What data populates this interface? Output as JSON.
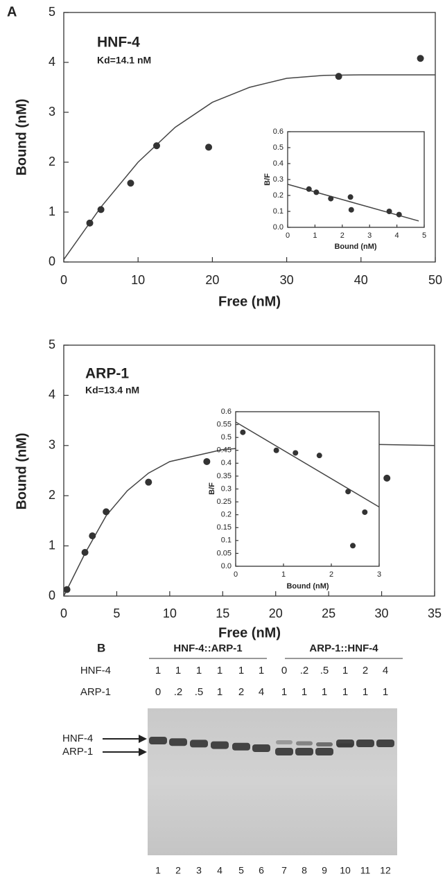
{
  "panel_a": "A",
  "chart_data": [
    {
      "type": "scatter",
      "title": "HNF-4",
      "annotation": "Kd=14.1 nM",
      "x_label": "Free (nM)",
      "y_label": "Bound (nM)",
      "x": [
        3.5,
        5,
        9,
        12.5,
        19.5,
        37,
        48
      ],
      "values": [
        0.78,
        1.05,
        1.58,
        2.33,
        2.3,
        3.72,
        4.08
      ],
      "fit": {
        "x": [
          0,
          5,
          10,
          15,
          20,
          25,
          30,
          35,
          40,
          50
        ],
        "y": [
          0.05,
          1.1,
          2.0,
          2.7,
          3.2,
          3.5,
          3.68,
          3.74,
          3.75,
          3.75
        ]
      },
      "xlim": [
        0,
        50
      ],
      "xticks": [
        0,
        10,
        20,
        30,
        40,
        50
      ],
      "ylim": [
        0,
        5
      ],
      "yticks": [
        0,
        1,
        2,
        3,
        4,
        5
      ]
    },
    {
      "type": "scatter",
      "x_label": "Bound (nM)",
      "y_label": "B/F",
      "x": [
        0.78,
        1.05,
        1.58,
        2.33,
        2.3,
        3.72,
        4.08
      ],
      "values": [
        0.24,
        0.22,
        0.18,
        0.11,
        0.19,
        0.1,
        0.08
      ],
      "fit": {
        "x": [
          0,
          4.8
        ],
        "y": [
          0.27,
          0.04
        ]
      },
      "xlim": [
        0,
        5
      ],
      "xticks": [
        0,
        1,
        2,
        3,
        4,
        5
      ],
      "ylim": [
        0,
        0.6
      ],
      "yticks": [
        {
          "value": 0,
          "label": "0.0"
        },
        0.1,
        0.2,
        0.3,
        0.4,
        0.5,
        0.6
      ]
    },
    {
      "type": "scatter",
      "title": "ARP-1",
      "annotation": "Kd=13.4 nM",
      "x_label": "Free (nM)",
      "y_label": "Bound (nM)",
      "x": [
        0.3,
        2,
        2.7,
        4,
        8,
        13.5,
        30.5
      ],
      "values": [
        0.13,
        0.87,
        1.2,
        1.68,
        2.27,
        2.68,
        2.35
      ],
      "fit": {
        "x": [
          0,
          2,
          4,
          6,
          8,
          10,
          15,
          20,
          25,
          30,
          35
        ],
        "y": [
          0,
          0.85,
          1.6,
          2.1,
          2.45,
          2.68,
          2.92,
          3.0,
          3.02,
          3.02,
          3.0
        ]
      },
      "xlim": [
        0,
        35
      ],
      "xticks": [
        0,
        5,
        10,
        15,
        20,
        25,
        30,
        35
      ],
      "ylim": [
        0,
        5
      ],
      "yticks": [
        0,
        1,
        2,
        3,
        4,
        5
      ]
    },
    {
      "type": "scatter",
      "x_label": "Bound (nM)",
      "y_label": "B/F",
      "x": [
        0.15,
        0.85,
        1.25,
        1.75,
        2.35,
        2.45,
        2.7
      ],
      "values": [
        0.52,
        0.45,
        0.44,
        0.43,
        0.29,
        0.08,
        0.21
      ],
      "fit": {
        "x": [
          0,
          3
        ],
        "y": [
          0.56,
          0.23
        ]
      },
      "xlim": [
        0,
        3
      ],
      "xticks": [
        0,
        1,
        2,
        3
      ],
      "ylim": [
        0,
        0.6
      ],
      "yticks": [
        {
          "value": 0,
          "label": "0.0"
        },
        0.05,
        0.1,
        0.15,
        0.2,
        0.25,
        0.3,
        0.35,
        0.4,
        0.45,
        0.5,
        0.55,
        0.6
      ]
    }
  ],
  "gel": {
    "panel": "B",
    "groups": [
      "HNF-4::ARP-1",
      "ARP-1::HNF-4"
    ],
    "rows": [
      {
        "label": "HNF-4",
        "values": [
          "1",
          "1",
          "1",
          "1",
          "1",
          "1",
          "0",
          ".2",
          ".5",
          "1",
          "2",
          "4"
        ]
      },
      {
        "label": "ARP-1",
        "values": [
          "0",
          ".2",
          ".5",
          "1",
          "2",
          "4",
          "1",
          "1",
          "1",
          "1",
          "1",
          "1"
        ]
      }
    ],
    "band_labels": [
      "HNF-4",
      "ARP-1"
    ],
    "lanes": [
      "1",
      "2",
      "3",
      "4",
      "5",
      "6",
      "7",
      "8",
      "9",
      "10",
      "11",
      "12"
    ]
  }
}
